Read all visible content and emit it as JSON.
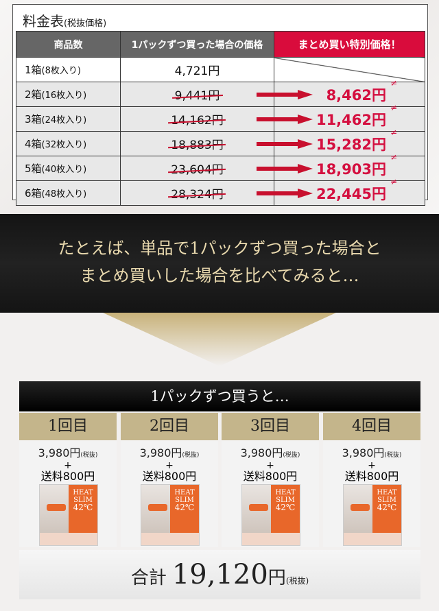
{
  "price_table": {
    "title": "料金表",
    "title_note": "(税抜価格)",
    "headers": {
      "qty": "商品数",
      "single": "1パックずつ買った場合の価格",
      "special": "まとめ買い特別価格！"
    },
    "rows": [
      {
        "name": "1箱",
        "note": "(8枚入り)",
        "single": "4,721円",
        "special": ""
      },
      {
        "name": "2箱",
        "note": "(16枚入り)",
        "single": "9,441円",
        "special": "8,462円"
      },
      {
        "name": "3箱",
        "note": "(24枚入り)",
        "single": "14,162円",
        "special": "11,462円"
      },
      {
        "name": "4箱",
        "note": "(32枚入り)",
        "single": "18,883円",
        "special": "15,282円"
      },
      {
        "name": "5箱",
        "note": "(40枚入り)",
        "single": "23,604円",
        "special": "18,903円"
      },
      {
        "name": "6箱",
        "note": "(48枚入り)",
        "single": "28,324円",
        "special": "22,445円"
      }
    ]
  },
  "banner": {
    "line1": "たとえば、単品で1パックずつ買った場合と",
    "line2": "まとめ買いした場合を比べてみると…"
  },
  "comparison": {
    "heading": "1パックずつ買うと…",
    "columns": [
      {
        "label": "1回目",
        "price": "3,980円",
        "tax": "(税抜)",
        "plus": "+",
        "shipping": "送料800円"
      },
      {
        "label": "2回目",
        "price": "3,980円",
        "tax": "(税抜)",
        "plus": "+",
        "shipping": "送料800円"
      },
      {
        "label": "3回目",
        "price": "3,980円",
        "tax": "(税抜)",
        "plus": "+",
        "shipping": "送料800円"
      },
      {
        "label": "4回目",
        "price": "3,980円",
        "tax": "(税抜)",
        "plus": "+",
        "shipping": "送料800円"
      }
    ],
    "product": {
      "line1": "HEAT",
      "line2": "SLIM",
      "line3": "42℃"
    },
    "total": {
      "label": "合計",
      "value": "19,120",
      "unit": "円",
      "tax": "(税抜)"
    }
  },
  "colors": {
    "accent_red": "#d40f3f",
    "header_gray": "#666666",
    "gold": "#c4b58b",
    "dark": "#1a1a1a"
  }
}
